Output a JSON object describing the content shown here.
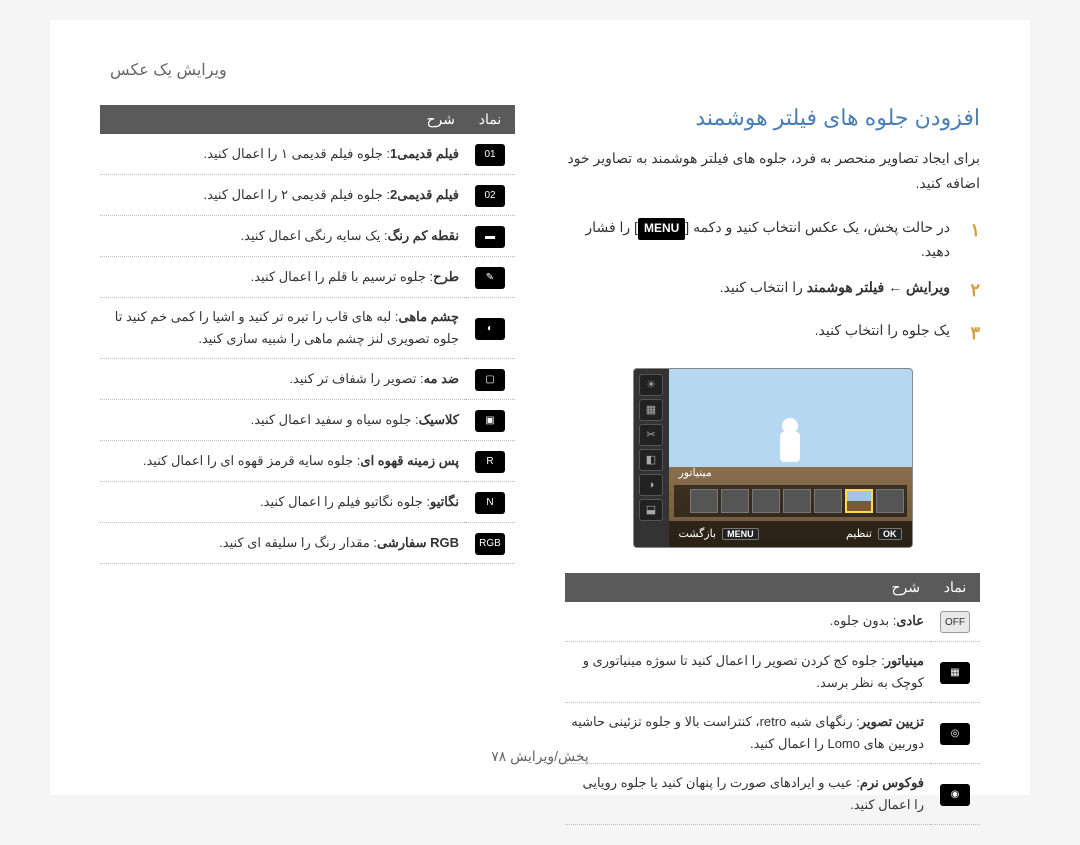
{
  "breadcrumb": "ویرایش یک عکس",
  "right_col": {
    "title": "افزودن جلوه های فیلتر هوشمند",
    "intro": "برای ایجاد تصاویر منحصر به فرد، جلوه های فیلتر هوشمند به تصاویر خود اضافه کنید.",
    "steps": [
      {
        "num": "۱",
        "pre": "در حالت پخش، یک عکس انتخاب کنید و دکمه [",
        "menu": "MENU",
        "post": "] را فشار دهید."
      },
      {
        "num": "۲",
        "full": "ویرایش ← فیلتر هوشمند را انتخاب کنید.",
        "bold_parts": [
          "ویرایش",
          "فیلتر هوشمند"
        ]
      },
      {
        "num": "۳",
        "full": "یک جلوه را انتخاب کنید."
      }
    ],
    "preview_label": "مینیاتور",
    "preview_back": "بازگشت",
    "preview_menu": "MENU",
    "preview_set": "تنظیم",
    "preview_ok": "OK",
    "table_header_icon": "نماد",
    "table_header_desc": "شرح",
    "rows": [
      {
        "icon": "OFF",
        "light": true,
        "bold": "عادی",
        "text": ": بدون جلوه."
      },
      {
        "icon": "▦",
        "light": false,
        "bold": "مینیاتور",
        "text": ": جلوه کج کردن تصویر را اعمال کنید تا سوژه مینیاتوری و کوچک به نظر برسد."
      },
      {
        "icon": "◎",
        "light": false,
        "bold": "تزیین تصویر",
        "text": ": رنگهای شبه retro، کنتراست بالا و جلوه تزئینی حاشیه دوربین های Lomo را اعمال کنید."
      },
      {
        "icon": "◉",
        "light": false,
        "bold": "فوکوس نرم",
        "text": ": عیب و ایرادهای صورت را پنهان کنید یا جلوه رویایی را اعمال کنید."
      }
    ]
  },
  "left_col": {
    "table_header_icon": "نماد",
    "table_header_desc": "شرح",
    "rows": [
      {
        "icon": "01",
        "bold": "فیلم قدیمی1",
        "text": ": جلوه فیلم قدیمی ۱ را اعمال کنید."
      },
      {
        "icon": "02",
        "bold": "فیلم قدیمی2",
        "text": ": جلوه فیلم قدیمی ۲ را اعمال کنید."
      },
      {
        "icon": "▬",
        "bold": "نقطه کم رنگ",
        "text": ": یک سایه رنگی اعمال کنید."
      },
      {
        "icon": "✎",
        "bold": "طرح",
        "text": ": جلوه ترسیم با قلم را اعمال کنید."
      },
      {
        "icon": "◐",
        "bold": "چشم ماهی",
        "text": ": لبه های قاب را تیره تر کنید و اشیا را کمی خم کنید تا جلوه تصویری لنز چشم ماهی را شبیه سازی کنید."
      },
      {
        "icon": "▢",
        "bold": "ضد مه",
        "text": ": تصویر را شفاف تر کنید."
      },
      {
        "icon": "▣",
        "bold": "کلاسیک",
        "text": ": جلوه سیاه و سفید اعمال کنید."
      },
      {
        "icon": "R",
        "bold": "پس زمینه قهوه ای",
        "text": ": جلوه سایه قرمز قهوه ای را اعمال کنید."
      },
      {
        "icon": "N",
        "bold": "نگاتیو",
        "text": ": جلوه نگاتیو فیلم را اعمال کنید."
      },
      {
        "icon": "RGB",
        "bold": "RGB سفارشی",
        "text": ": مقدار رنگ را سلیقه ای کنید."
      }
    ]
  },
  "footer": "پخش/ویرایش  ۷۸",
  "colors": {
    "title": "#4a7fb5",
    "step_num": "#d4a03f",
    "th_bg": "#5a5a5a"
  }
}
